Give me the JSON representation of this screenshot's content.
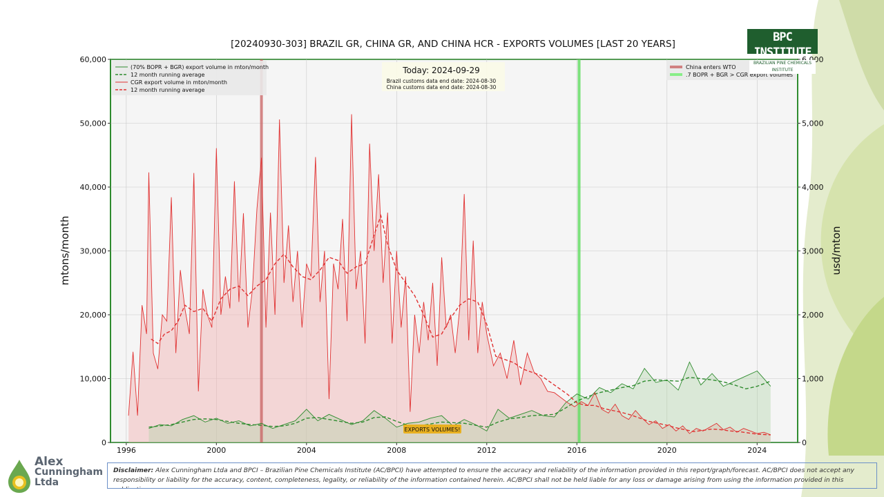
{
  "chart_data": {
    "type": "line",
    "title": "[20240930-303] BRAZIL GR, CHINA GR, AND CHINA HCR - EXPORTS VOLUMES [LAST 20 YEARS]",
    "ylabel": "mtons/month",
    "ylabel_right": "usd/mton",
    "ylim": [
      0,
      60000
    ],
    "ylim_right": [
      0,
      6000
    ],
    "xlim": [
      1995.3,
      2025.8
    ],
    "x_ticks": [
      1996,
      2000,
      2004,
      2008,
      2012,
      2016,
      2020,
      2024
    ],
    "x_tick_labels": [
      "1996",
      "2000",
      "2004",
      "2008",
      "2012",
      "2016",
      "2020",
      "2024"
    ],
    "y_ticks": [
      0,
      10000,
      20000,
      30000,
      40000,
      50000,
      60000
    ],
    "y_tick_labels": [
      "0",
      "10,000",
      "20,000",
      "30,000",
      "40,000",
      "50,000",
      "60,000"
    ],
    "y_ticks_right": [
      0,
      1000,
      2000,
      3000,
      4000,
      5000,
      6000
    ],
    "y_tick_labels_right": [
      "0",
      "1,000",
      "2,000",
      "3,000",
      "4,000",
      "5,000",
      "6,000"
    ],
    "grid": true,
    "series": [
      {
        "name": "(70% BOPR + BGR) export volume in mton/month",
        "color": "#2e8b2e",
        "style": "solid",
        "x": [
          1997.0,
          1997.5,
          1998.0,
          1998.5,
          1999.0,
          1999.5,
          2000.0,
          2000.5,
          2001.0,
          2001.5,
          2002.0,
          2002.5,
          2003.0,
          2003.5,
          2004.0,
          2004.5,
          2005.0,
          2005.5,
          2006.0,
          2006.5,
          2007.0,
          2007.5,
          2008.0,
          2008.5,
          2009.0,
          2009.5,
          2010.0,
          2010.5,
          2011.0,
          2011.5,
          2012.0,
          2012.5,
          2013.0,
          2013.5,
          2014.0,
          2014.5,
          2015.0,
          2015.5,
          2016.0,
          2016.5,
          2017.0,
          2017.5,
          2018.0,
          2018.5,
          2019.0,
          2019.5,
          2020.0,
          2020.5,
          2021.0,
          2021.5,
          2022.0,
          2022.5,
          2023.0,
          2023.5,
          2024.0,
          2024.6
        ],
        "values": [
          2200,
          2800,
          2600,
          3600,
          4200,
          3200,
          3800,
          3000,
          3400,
          2600,
          3000,
          2200,
          2800,
          3400,
          5200,
          3400,
          4400,
          3600,
          2800,
          3400,
          5000,
          3800,
          2400,
          3000,
          3200,
          3800,
          4200,
          2600,
          3600,
          2800,
          1800,
          5200,
          3800,
          4400,
          5000,
          4200,
          4000,
          6200,
          7600,
          6800,
          8600,
          7800,
          9200,
          8400,
          11600,
          9400,
          9800,
          8200,
          12600,
          9000,
          10800,
          8800,
          9600,
          10400,
          11200,
          8800
        ]
      },
      {
        "name": "12 month running average",
        "color": "#2e8b2e",
        "style": "dashed",
        "x": [
          1997.0,
          1997.5,
          1998.0,
          1998.5,
          1999.0,
          1999.5,
          2000.0,
          2000.5,
          2001.0,
          2001.5,
          2002.0,
          2002.5,
          2003.0,
          2003.5,
          2004.0,
          2004.5,
          2005.0,
          2005.5,
          2006.0,
          2006.5,
          2007.0,
          2007.5,
          2008.0,
          2008.5,
          2009.0,
          2009.5,
          2010.0,
          2010.5,
          2011.0,
          2011.5,
          2012.0,
          2012.5,
          2013.0,
          2013.5,
          2014.0,
          2014.5,
          2015.0,
          2015.5,
          2016.0,
          2016.5,
          2017.0,
          2017.5,
          2018.0,
          2018.5,
          2019.0,
          2019.5,
          2020.0,
          2020.5,
          2021.0,
          2021.5,
          2022.0,
          2022.5,
          2023.0,
          2023.5,
          2024.0,
          2024.6
        ],
        "values": [
          2400,
          2600,
          2800,
          3200,
          3600,
          3700,
          3600,
          3300,
          3000,
          2800,
          2700,
          2500,
          2600,
          3000,
          3800,
          3900,
          3600,
          3300,
          3000,
          3200,
          3900,
          4000,
          3300,
          2700,
          2600,
          2900,
          3200,
          3100,
          3000,
          2700,
          2400,
          3200,
          3700,
          3900,
          4200,
          4300,
          4400,
          5400,
          6500,
          7200,
          7800,
          8200,
          8600,
          8900,
          9600,
          9800,
          9700,
          9600,
          10200,
          10000,
          9800,
          9500,
          9000,
          8400,
          8800,
          9600
        ]
      },
      {
        "name": "CGR export volume in mton/month",
        "color": "#e03030",
        "style": "solid",
        "x": [
          1996.1,
          1996.3,
          1996.5,
          1996.7,
          1996.9,
          1997.0,
          1997.2,
          1997.4,
          1997.6,
          1997.8,
          1998.0,
          1998.2,
          1998.4,
          1998.6,
          1998.8,
          1999.0,
          1999.2,
          1999.4,
          1999.6,
          1999.8,
          2000.0,
          2000.2,
          2000.4,
          2000.6,
          2000.8,
          2001.0,
          2001.2,
          2001.4,
          2001.6,
          2001.8,
          2002.0,
          2002.2,
          2002.4,
          2002.6,
          2002.8,
          2003.0,
          2003.2,
          2003.4,
          2003.6,
          2003.8,
          2004.0,
          2004.2,
          2004.4,
          2004.6,
          2004.8,
          2005.0,
          2005.2,
          2005.4,
          2005.6,
          2005.8,
          2006.0,
          2006.2,
          2006.4,
          2006.6,
          2006.8,
          2007.0,
          2007.2,
          2007.4,
          2007.6,
          2007.8,
          2008.0,
          2008.2,
          2008.4,
          2008.6,
          2008.8,
          2009.0,
          2009.2,
          2009.4,
          2009.6,
          2009.8,
          2010.0,
          2010.2,
          2010.4,
          2010.6,
          2010.8,
          2011.0,
          2011.2,
          2011.4,
          2011.6,
          2011.8,
          2012.0,
          2012.3,
          2012.6,
          2012.9,
          2013.2,
          2013.5,
          2013.8,
          2014.1,
          2014.4,
          2014.7,
          2015.0,
          2015.3,
          2015.6,
          2015.9,
          2016.2,
          2016.5,
          2016.8,
          2017.1,
          2017.4,
          2017.7,
          2018.0,
          2018.3,
          2018.6,
          2018.9,
          2019.2,
          2019.5,
          2019.8,
          2020.1,
          2020.4,
          2020.7,
          2021.0,
          2021.3,
          2021.6,
          2021.9,
          2022.2,
          2022.5,
          2022.8,
          2023.1,
          2023.4,
          2023.7,
          2024.0,
          2024.3,
          2024.6
        ],
        "values": [
          4200,
          14200,
          4200,
          21500,
          17000,
          42300,
          14000,
          11500,
          20000,
          19000,
          38400,
          14000,
          27000,
          21000,
          17000,
          42200,
          8000,
          24000,
          20000,
          18000,
          46100,
          20000,
          26000,
          21000,
          40900,
          22000,
          35900,
          18000,
          24000,
          36600,
          44600,
          18000,
          36000,
          20000,
          50600,
          25000,
          34000,
          22000,
          30000,
          18000,
          28000,
          26000,
          44700,
          22000,
          30000,
          6800,
          28000,
          24000,
          35000,
          19000,
          51400,
          24000,
          30000,
          15500,
          46800,
          30000,
          42000,
          25000,
          36000,
          15500,
          30000,
          18000,
          26000,
          4800,
          20000,
          14000,
          22000,
          16000,
          25000,
          12000,
          29000,
          18000,
          20000,
          14000,
          21000,
          38900,
          16000,
          31600,
          14000,
          22000,
          17000,
          12000,
          14000,
          10000,
          16000,
          9000,
          14000,
          11000,
          10000,
          8000,
          7800,
          7000,
          6200,
          5600,
          6400,
          5800,
          7800,
          5200,
          4600,
          6000,
          4200,
          3600,
          5000,
          3800,
          2800,
          3400,
          2200,
          2800,
          1800,
          2600,
          1400,
          2200,
          1800,
          2400,
          3000,
          2000,
          2400,
          1600,
          2200,
          1800,
          1400,
          1600,
          1200
        ]
      },
      {
        "name": "12 month running average",
        "color": "#e03030",
        "style": "dashed",
        "x": [
          1997.1,
          1997.4,
          1997.7,
          1998.0,
          1998.3,
          1998.6,
          1999.0,
          1999.4,
          1999.8,
          2000.2,
          2000.6,
          2001.0,
          2001.4,
          2001.8,
          2002.2,
          2002.6,
          2003.0,
          2003.4,
          2003.8,
          2004.2,
          2004.6,
          2005.0,
          2005.4,
          2005.8,
          2006.2,
          2006.6,
          2007.0,
          2007.3,
          2007.6,
          2008.0,
          2008.4,
          2008.8,
          2009.2,
          2009.6,
          2010.0,
          2010.4,
          2010.8,
          2011.2,
          2011.6,
          2012.0,
          2012.4,
          2012.8,
          2013.2,
          2013.6,
          2014.0,
          2014.4,
          2014.8,
          2015.2,
          2015.6,
          2016.0,
          2016.4,
          2016.8,
          2017.2,
          2017.6,
          2018.0,
          2018.4,
          2018.8,
          2019.2,
          2019.6,
          2020.0,
          2020.4,
          2020.8,
          2021.2,
          2021.6,
          2022.0,
          2022.4,
          2022.8,
          2023.2,
          2023.6,
          2024.0,
          2024.6
        ],
        "values": [
          16200,
          15500,
          17000,
          17500,
          19000,
          21500,
          20500,
          21000,
          19000,
          22500,
          24000,
          24500,
          23000,
          24500,
          25500,
          28000,
          29500,
          27500,
          26000,
          25500,
          27000,
          29000,
          28500,
          26500,
          27500,
          28000,
          32500,
          35500,
          31000,
          27000,
          25000,
          23000,
          20000,
          16500,
          17000,
          19500,
          21500,
          22500,
          22000,
          18500,
          13500,
          13000,
          12500,
          11500,
          11000,
          10500,
          9500,
          8500,
          7500,
          6200,
          5800,
          5800,
          5300,
          5000,
          4700,
          4300,
          3800,
          3300,
          3000,
          2700,
          2300,
          2000,
          1700,
          1900,
          2100,
          2000,
          1800,
          1700,
          1500,
          1300,
          1200
        ]
      }
    ],
    "vertical_markers": [
      {
        "name": "China enters WTO",
        "x": 2002.0,
        "color": "#c86060"
      },
      {
        "name": ".7 BOPR + BGR > CGR export volumes",
        "x": 2016.1,
        "color": "#66dd66"
      }
    ],
    "annotations": {
      "today": "Today: 2024-09-29",
      "brazil_data_end": "Brazil customs data end date: 2024-08-30",
      "china_data_end": "China customs data end date: 2024-08-30",
      "exports_badge": "EXPORTS VOLUMES!"
    },
    "legend_left": "top-left",
    "legend_right": "top-right"
  },
  "disclaimer": {
    "label": "Disclaimer:",
    "text": "Alex Cunningham Ltda and BPCI – Brazilian Pine Chemicals Institute (AC/BPCI) have attempted to ensure the accuracy and reliability of the information provided in this report/graph/forecast. AC/BPCI does not accept any responsibility or liability for the accuracy, content, completeness, legality, or reliability of the information contained herein. AC/BPCI shall not be held liable for any loss or damage arising from using the information provided in this publication."
  },
  "logos": {
    "company_line1": "Alex",
    "company_line2": "Cunningham",
    "company_line3": "Ltda",
    "institute_name": "BPC INSTITUTE",
    "institute_sub": "BRAZILIAN PINE CHEMICALS INSTITUTE"
  }
}
